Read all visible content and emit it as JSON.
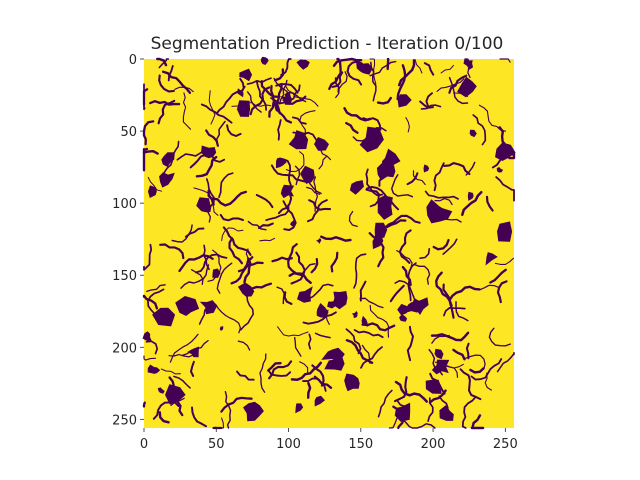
{
  "chart_data": {
    "type": "heatmap",
    "title": "Segmentation Prediction - Iteration 0/100",
    "xlabel": "",
    "ylabel": "",
    "image_size": [
      256,
      256
    ],
    "xlim": [
      0,
      256
    ],
    "ylim": [
      256,
      0
    ],
    "x_ticks": [
      0,
      50,
      100,
      150,
      200,
      250
    ],
    "y_ticks": [
      0,
      50,
      100,
      150,
      200,
      250
    ],
    "x_tick_labels": [
      "0",
      "50",
      "100",
      "150",
      "200",
      "250"
    ],
    "y_tick_labels": [
      "0",
      "50",
      "100",
      "150",
      "200",
      "250"
    ],
    "classes": [
      0,
      1
    ],
    "colormap": "viridis",
    "class_colors": {
      "0": "#440154",
      "1": "#fde725"
    },
    "background_class": 1,
    "grid": false,
    "legend": "none"
  }
}
